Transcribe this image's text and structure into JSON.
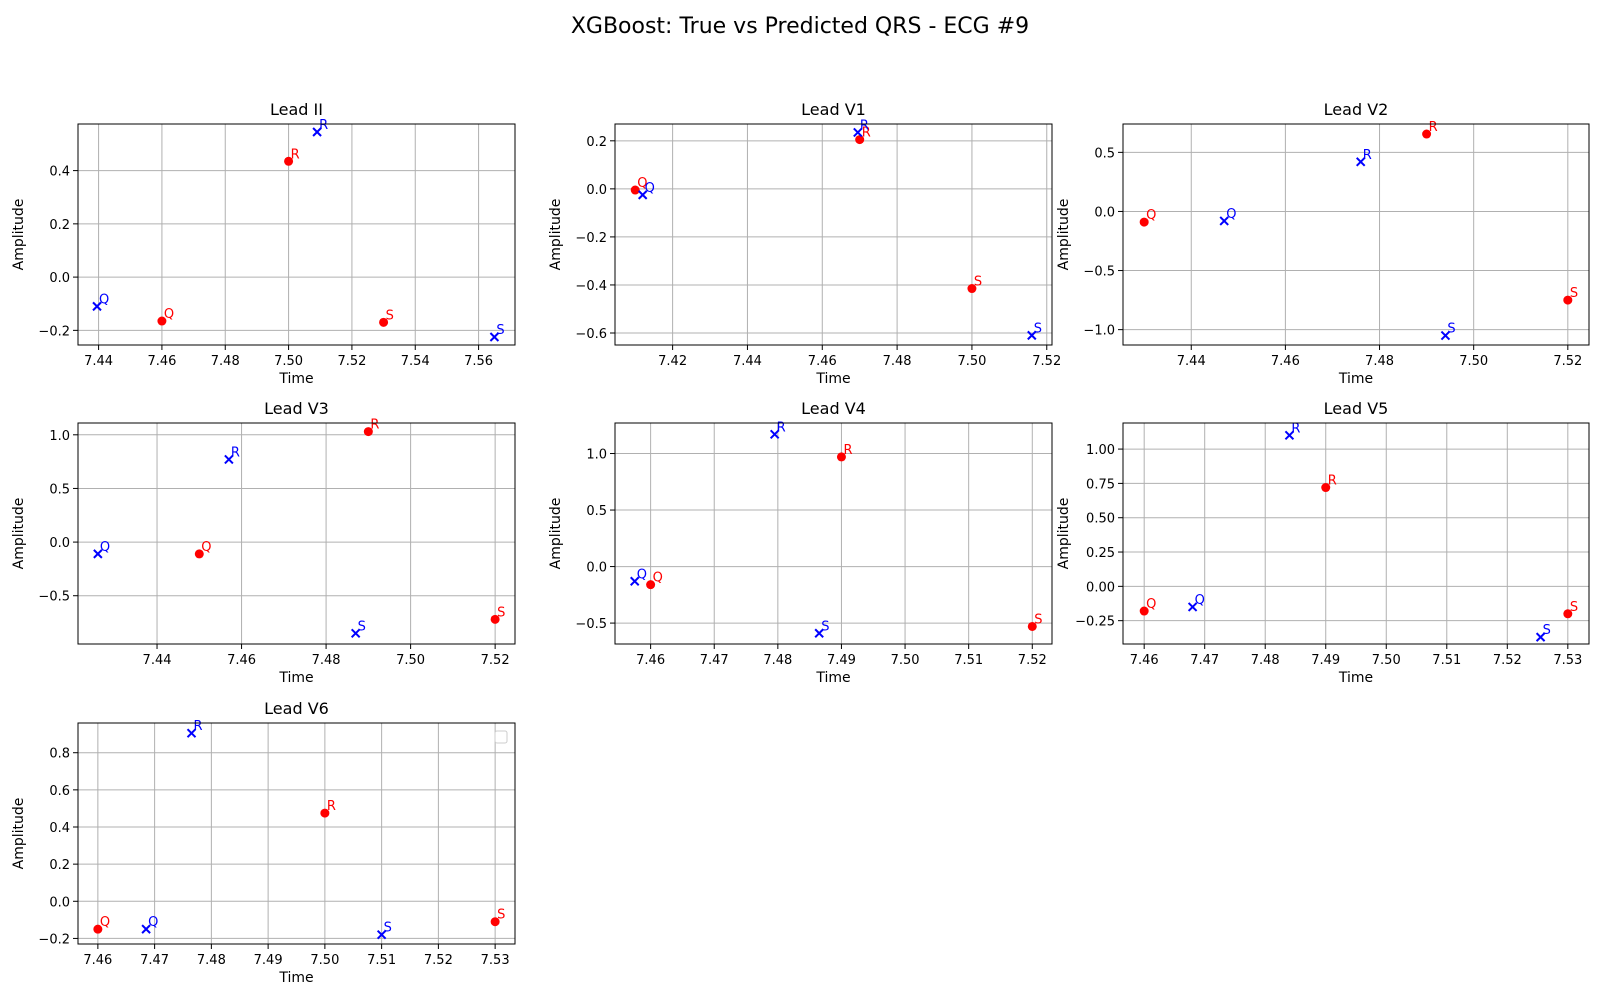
{
  "figure": {
    "title": "XGBoost: True vs Predicted QRS - ECG #9",
    "true_color": "#ff0000",
    "pred_color": "#0000ff"
  },
  "chart_data": [
    {
      "type": "scatter",
      "title": "Lead II",
      "xlabel": "Time",
      "ylabel": "Amplitude",
      "xlim": [
        7.4335,
        7.5715
      ],
      "ylim": [
        -0.255,
        0.575
      ],
      "grid": true,
      "xticks": [
        7.44,
        7.46,
        7.48,
        7.5,
        7.52,
        7.54,
        7.56
      ],
      "yticks": [
        -0.2,
        0.0,
        0.2,
        0.4
      ],
      "xtick_labels": [
        "7.44",
        "7.46",
        "7.48",
        "7.50",
        "7.52",
        "7.54",
        "7.56"
      ],
      "ytick_labels": [
        "−0.2",
        "0.0",
        "0.2",
        "0.4"
      ],
      "series": [
        {
          "marker": "o",
          "color": "#ff0000",
          "points": [
            {
              "x": 7.46,
              "y": -0.165,
              "label": "Q"
            },
            {
              "x": 7.5,
              "y": 0.435,
              "label": "R"
            },
            {
              "x": 7.53,
              "y": -0.17,
              "label": "S"
            }
          ]
        },
        {
          "marker": "x",
          "color": "#0000ff",
          "points": [
            {
              "x": 7.4395,
              "y": -0.11,
              "label": "Q"
            },
            {
              "x": 7.509,
              "y": 0.545,
              "label": "R"
            },
            {
              "x": 7.565,
              "y": -0.225,
              "label": "S"
            }
          ]
        }
      ]
    },
    {
      "type": "scatter",
      "title": "Lead V1",
      "xlabel": "Time",
      "ylabel": "Amplitude",
      "xlim": [
        7.4046,
        7.5214
      ],
      "ylim": [
        -0.65,
        0.27
      ],
      "grid": true,
      "xticks": [
        7.42,
        7.44,
        7.46,
        7.48,
        7.5,
        7.52
      ],
      "yticks": [
        -0.6,
        -0.4,
        -0.2,
        0.0,
        0.2
      ],
      "xtick_labels": [
        "7.42",
        "7.44",
        "7.46",
        "7.48",
        "7.50",
        "7.52"
      ],
      "ytick_labels": [
        "−0.6",
        "−0.4",
        "−0.2",
        "0.0",
        "0.2"
      ],
      "series": [
        {
          "marker": "o",
          "color": "#ff0000",
          "points": [
            {
              "x": 7.41,
              "y": -0.005,
              "label": "Q"
            },
            {
              "x": 7.47,
              "y": 0.205,
              "label": "R"
            },
            {
              "x": 7.5,
              "y": -0.415,
              "label": "S"
            }
          ]
        },
        {
          "marker": "x",
          "color": "#0000ff",
          "points": [
            {
              "x": 7.412,
              "y": -0.025,
              "label": "Q"
            },
            {
              "x": 7.4695,
              "y": 0.235,
              "label": "R"
            },
            {
              "x": 7.516,
              "y": -0.61,
              "label": "S"
            }
          ]
        }
      ]
    },
    {
      "type": "scatter",
      "title": "Lead V2",
      "xlabel": "Time",
      "ylabel": "Amplitude",
      "xlim": [
        7.4255,
        7.5245
      ],
      "ylim": [
        -1.13,
        0.74
      ],
      "grid": true,
      "xticks": [
        7.44,
        7.46,
        7.48,
        7.5,
        7.52
      ],
      "yticks": [
        -1.0,
        -0.5,
        0.0,
        0.5
      ],
      "xtick_labels": [
        "7.44",
        "7.46",
        "7.48",
        "7.50",
        "7.52"
      ],
      "ytick_labels": [
        "−1.0",
        "−0.5",
        "0.0",
        "0.5"
      ],
      "series": [
        {
          "marker": "o",
          "color": "#ff0000",
          "points": [
            {
              "x": 7.43,
              "y": -0.09,
              "label": "Q"
            },
            {
              "x": 7.49,
              "y": 0.655,
              "label": "R"
            },
            {
              "x": 7.52,
              "y": -0.75,
              "label": "S"
            }
          ]
        },
        {
          "marker": "x",
          "color": "#0000ff",
          "points": [
            {
              "x": 7.447,
              "y": -0.08,
              "label": "Q"
            },
            {
              "x": 7.476,
              "y": 0.42,
              "label": "R"
            },
            {
              "x": 7.494,
              "y": -1.05,
              "label": "S"
            }
          ]
        }
      ]
    },
    {
      "type": "scatter",
      "title": "Lead V3",
      "xlabel": "Time",
      "ylabel": "Amplitude",
      "xlim": [
        7.4213,
        7.5247
      ],
      "ylim": [
        -0.95,
        1.11
      ],
      "grid": true,
      "xticks": [
        7.44,
        7.46,
        7.48,
        7.5,
        7.52
      ],
      "yticks": [
        -0.5,
        0.0,
        0.5,
        1.0
      ],
      "xtick_labels": [
        "7.44",
        "7.46",
        "7.48",
        "7.50",
        "7.52"
      ],
      "ytick_labels": [
        "−0.5",
        "0.0",
        "0.5",
        "1.0"
      ],
      "series": [
        {
          "marker": "o",
          "color": "#ff0000",
          "points": [
            {
              "x": 7.45,
              "y": -0.11,
              "label": "Q"
            },
            {
              "x": 7.49,
              "y": 1.03,
              "label": "R"
            },
            {
              "x": 7.52,
              "y": -0.72,
              "label": "S"
            }
          ]
        },
        {
          "marker": "x",
          "color": "#0000ff",
          "points": [
            {
              "x": 7.426,
              "y": -0.11,
              "label": "Q"
            },
            {
              "x": 7.457,
              "y": 0.77,
              "label": "R"
            },
            {
              "x": 7.487,
              "y": -0.85,
              "label": "S"
            }
          ]
        }
      ]
    },
    {
      "type": "scatter",
      "title": "Lead V4",
      "xlabel": "Time",
      "ylabel": "Amplitude",
      "xlim": [
        7.4544,
        7.5231
      ],
      "ylim": [
        -0.685,
        1.27
      ],
      "grid": true,
      "xticks": [
        7.46,
        7.47,
        7.48,
        7.49,
        7.5,
        7.51,
        7.52
      ],
      "yticks": [
        -0.5,
        0.0,
        0.5,
        1.0
      ],
      "xtick_labels": [
        "7.46",
        "7.47",
        "7.48",
        "7.49",
        "7.50",
        "7.51",
        "7.52"
      ],
      "ytick_labels": [
        "−0.5",
        "0.0",
        "0.5",
        "1.0"
      ],
      "series": [
        {
          "marker": "o",
          "color": "#ff0000",
          "points": [
            {
              "x": 7.46,
              "y": -0.16,
              "label": "Q"
            },
            {
              "x": 7.49,
              "y": 0.97,
              "label": "R"
            },
            {
              "x": 7.52,
              "y": -0.53,
              "label": "S"
            }
          ]
        },
        {
          "marker": "x",
          "color": "#0000ff",
          "points": [
            {
              "x": 7.4575,
              "y": -0.13,
              "label": "Q"
            },
            {
              "x": 7.4795,
              "y": 1.17,
              "label": "R"
            },
            {
              "x": 7.4865,
              "y": -0.59,
              "label": "S"
            }
          ]
        }
      ]
    },
    {
      "type": "scatter",
      "title": "Lead V5",
      "xlabel": "Time",
      "ylabel": "Amplitude",
      "xlim": [
        7.4565,
        7.5335
      ],
      "ylim": [
        -0.42,
        1.19
      ],
      "grid": true,
      "xticks": [
        7.46,
        7.47,
        7.48,
        7.49,
        7.5,
        7.51,
        7.52,
        7.53
      ],
      "yticks": [
        -0.25,
        0.0,
        0.25,
        0.5,
        0.75,
        1.0
      ],
      "xtick_labels": [
        "7.46",
        "7.47",
        "7.48",
        "7.49",
        "7.50",
        "7.51",
        "7.52",
        "7.53"
      ],
      "ytick_labels": [
        "−0.25",
        "0.00",
        "0.25",
        "0.50",
        "0.75",
        "1.00"
      ],
      "series": [
        {
          "marker": "o",
          "color": "#ff0000",
          "points": [
            {
              "x": 7.46,
              "y": -0.18,
              "label": "Q"
            },
            {
              "x": 7.49,
              "y": 0.72,
              "label": "R"
            },
            {
              "x": 7.53,
              "y": -0.2,
              "label": "S"
            }
          ]
        },
        {
          "marker": "x",
          "color": "#0000ff",
          "points": [
            {
              "x": 7.468,
              "y": -0.15,
              "label": "Q"
            },
            {
              "x": 7.484,
              "y": 1.1,
              "label": "R"
            },
            {
              "x": 7.5255,
              "y": -0.37,
              "label": "S"
            }
          ]
        }
      ]
    },
    {
      "type": "scatter",
      "title": "Lead V6",
      "xlabel": "Time",
      "ylabel": "Amplitude",
      "xlim": [
        7.4565,
        7.5335
      ],
      "ylim": [
        -0.23,
        0.96
      ],
      "grid": true,
      "xticks": [
        7.46,
        7.47,
        7.48,
        7.49,
        7.5,
        7.51,
        7.52,
        7.53
      ],
      "yticks": [
        -0.2,
        0.0,
        0.2,
        0.4,
        0.6,
        0.8
      ],
      "xtick_labels": [
        "7.46",
        "7.47",
        "7.48",
        "7.49",
        "7.50",
        "7.51",
        "7.52",
        "7.53"
      ],
      "ytick_labels": [
        "−0.2",
        "0.0",
        "0.2",
        "0.4",
        "0.6",
        "0.8"
      ],
      "legend": "upper right (empty)",
      "series": [
        {
          "marker": "o",
          "color": "#ff0000",
          "points": [
            {
              "x": 7.46,
              "y": -0.15,
              "label": "Q"
            },
            {
              "x": 7.5,
              "y": 0.475,
              "label": "R"
            },
            {
              "x": 7.53,
              "y": -0.11,
              "label": "S"
            }
          ]
        },
        {
          "marker": "x",
          "color": "#0000ff",
          "points": [
            {
              "x": 7.4685,
              "y": -0.15,
              "label": "Q"
            },
            {
              "x": 7.4765,
              "y": 0.905,
              "label": "R"
            },
            {
              "x": 7.51,
              "y": -0.18,
              "label": "S"
            }
          ]
        }
      ]
    }
  ]
}
